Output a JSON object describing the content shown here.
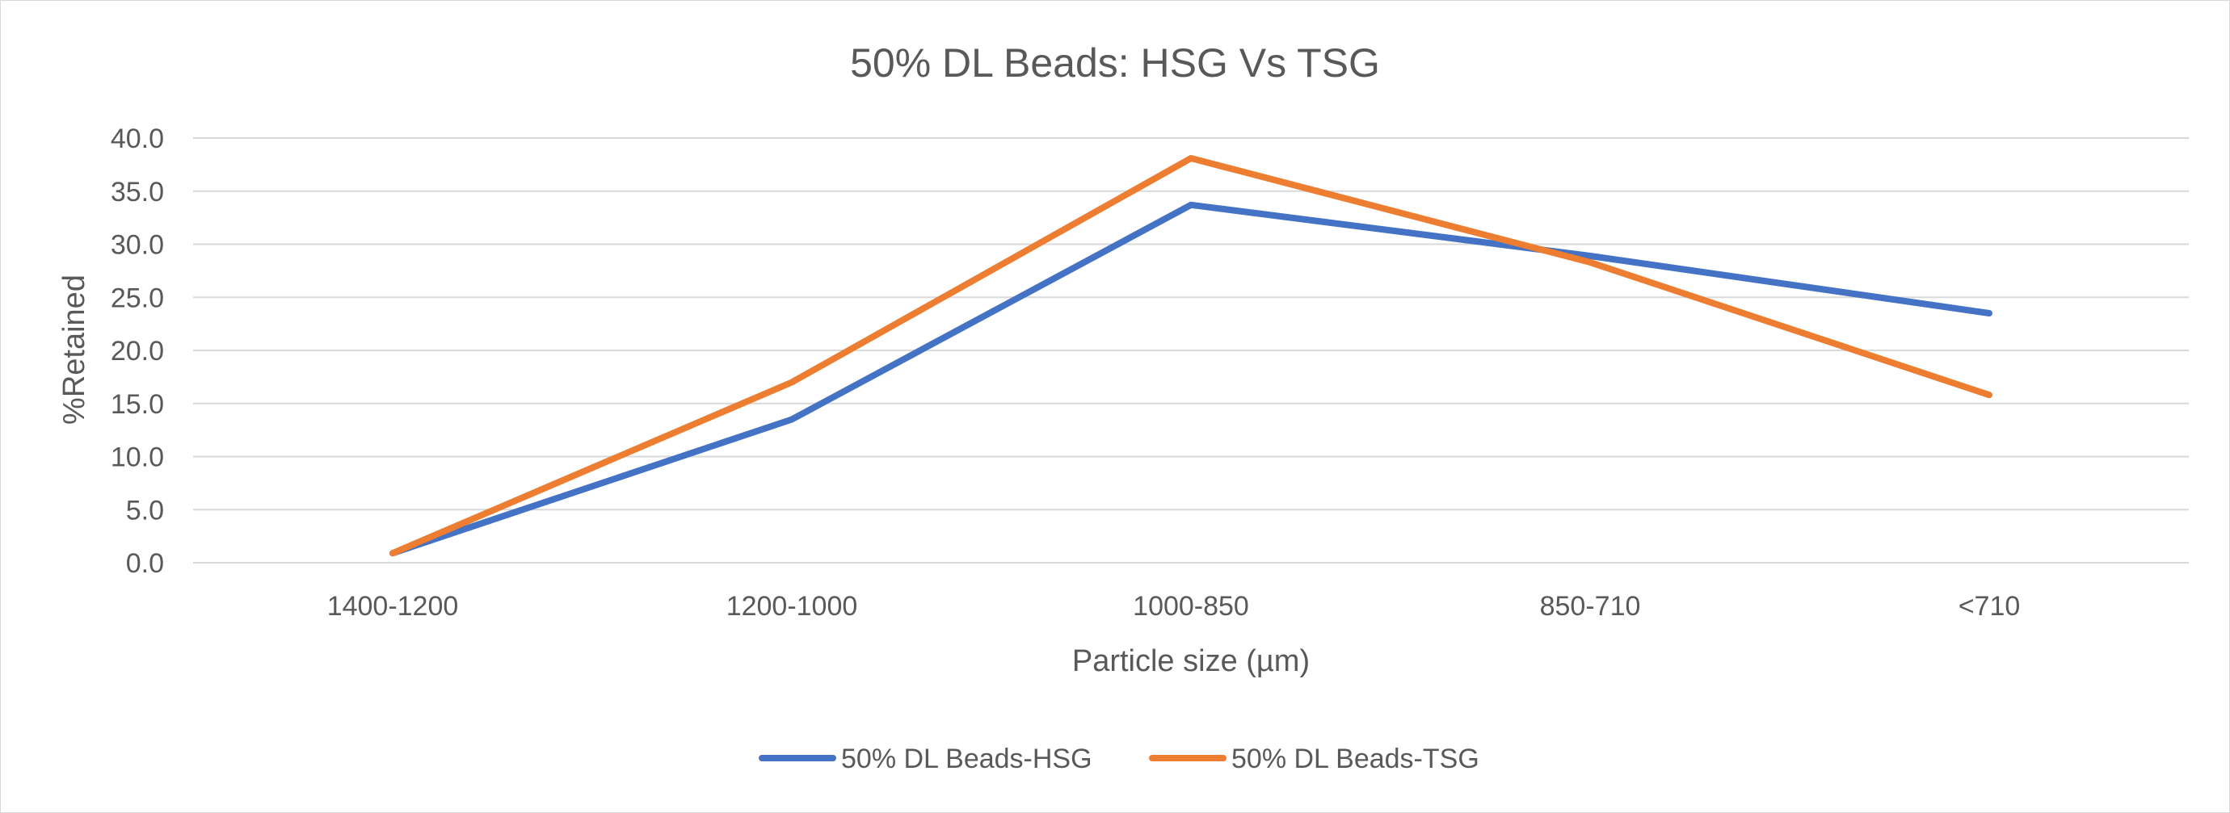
{
  "chart_data": {
    "type": "line",
    "title": "50% DL Beads: HSG Vs TSG",
    "xlabel": "Particle size (µm)",
    "ylabel": "%Retained",
    "categories": [
      "1400-1200",
      "1200-1000",
      "1000-850",
      "850-710",
      "<710"
    ],
    "ylim": [
      0,
      40
    ],
    "ytick_step": 5,
    "ytick_decimals": 1,
    "grid": true,
    "legend_position": "bottom",
    "series": [
      {
        "name": "50% DL Beads-HSG",
        "color": "#4472c4",
        "values": [
          0.9,
          13.5,
          33.7,
          28.9,
          23.5
        ]
      },
      {
        "name": "50% DL Beads-TSG",
        "color": "#ed7d31",
        "values": [
          0.9,
          17.0,
          38.1,
          28.3,
          15.8
        ]
      }
    ]
  }
}
